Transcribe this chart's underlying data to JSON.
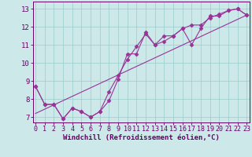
{
  "xlabel": "Windchill (Refroidissement éolien,°C)",
  "bg_color": "#cce8e8",
  "grid_color": "#99cccc",
  "line_color": "#993399",
  "x_ticks": [
    0,
    1,
    2,
    3,
    4,
    5,
    6,
    7,
    8,
    9,
    10,
    11,
    12,
    13,
    14,
    15,
    16,
    17,
    18,
    19,
    20,
    21,
    22,
    23
  ],
  "y_ticks": [
    7,
    8,
    9,
    10,
    11,
    12,
    13
  ],
  "xlim": [
    -0.3,
    23.3
  ],
  "ylim": [
    6.7,
    13.4
  ],
  "line1_x": [
    0,
    1,
    2,
    3,
    4,
    5,
    6,
    7,
    8,
    9,
    10,
    11,
    12,
    13,
    14,
    15,
    16,
    17,
    18,
    19,
    20,
    21,
    22,
    23
  ],
  "line1_y": [
    8.7,
    7.7,
    7.7,
    6.9,
    7.5,
    7.3,
    7.0,
    7.3,
    7.9,
    9.1,
    10.5,
    10.5,
    11.7,
    11.0,
    11.5,
    11.5,
    11.9,
    11.0,
    11.9,
    12.6,
    12.6,
    12.9,
    13.0,
    12.65
  ],
  "line2_x": [
    0,
    1,
    2,
    3,
    4,
    5,
    6,
    7,
    8,
    9,
    10,
    11,
    12,
    13,
    14,
    15,
    16,
    17,
    18,
    19,
    20,
    21,
    22,
    23
  ],
  "line2_y": [
    8.7,
    7.7,
    7.7,
    6.9,
    7.5,
    7.3,
    7.0,
    7.3,
    8.4,
    9.3,
    10.2,
    10.9,
    11.6,
    11.0,
    11.2,
    11.5,
    11.9,
    12.1,
    12.1,
    12.5,
    12.7,
    12.9,
    13.0,
    12.65
  ],
  "line3_x": [
    0,
    23
  ],
  "line3_y": [
    7.2,
    12.65
  ],
  "marker": "D",
  "markersize": 2.5,
  "linewidth": 0.8,
  "tick_fontsize": 6.0,
  "xlabel_fontsize": 6.5
}
